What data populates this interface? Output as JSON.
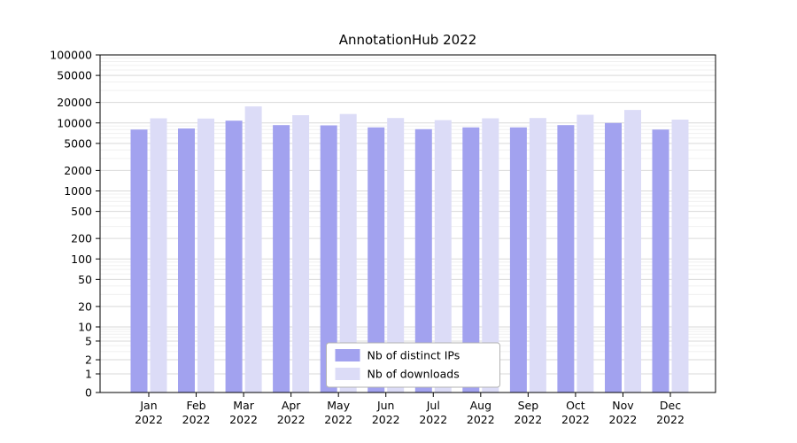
{
  "title": "AnnotationHub 2022",
  "chart_data": {
    "type": "bar",
    "title": "AnnotationHub 2022",
    "categories": [
      "Jan",
      "Feb",
      "Mar",
      "Apr",
      "May",
      "Jun",
      "Jul",
      "Aug",
      "Sep",
      "Oct",
      "Nov",
      "Dec"
    ],
    "category_year": "2022",
    "series": [
      {
        "name": "Nb of distinct IPs",
        "color": "#a2a2ef",
        "values": [
          8000,
          8300,
          10800,
          9300,
          9200,
          8600,
          8100,
          8600,
          8600,
          9300,
          10000,
          8000
        ]
      },
      {
        "name": "Nb of downloads",
        "color": "#dcdcf7",
        "values": [
          11700,
          11600,
          17500,
          13000,
          13500,
          11800,
          11000,
          11700,
          11800,
          13200,
          15500,
          11200
        ]
      }
    ],
    "yticks": [
      0,
      1,
      2,
      5,
      10,
      20,
      50,
      100,
      200,
      500,
      1000,
      2000,
      5000,
      10000,
      20000,
      50000,
      100000
    ],
    "yscale": "symlog",
    "ylim": [
      0,
      100000
    ],
    "grid": true,
    "legend": {
      "position": "lower center",
      "entries": [
        "Nb of distinct IPs",
        "Nb of downloads"
      ]
    },
    "colors": {
      "grid_major": "#d9d9d9",
      "grid_minor": "#f0f0f0",
      "spine": "#000000",
      "legend_border": "#b3b3b3"
    }
  }
}
